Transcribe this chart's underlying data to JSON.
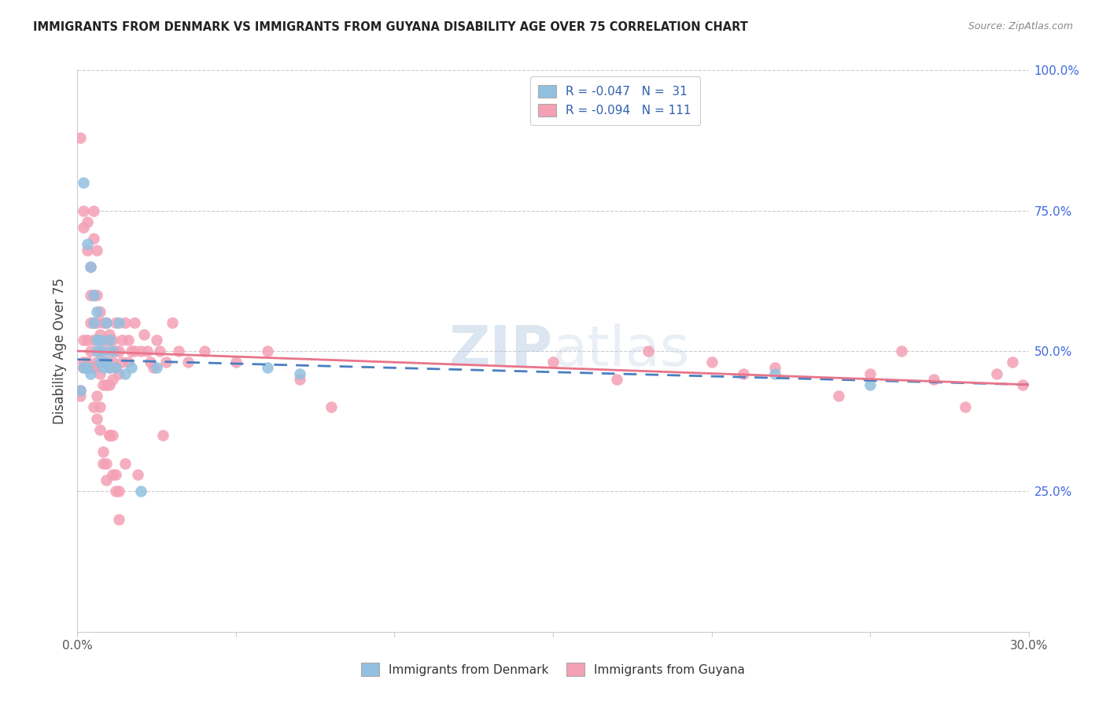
{
  "title": "IMMIGRANTS FROM DENMARK VS IMMIGRANTS FROM GUYANA DISABILITY AGE OVER 75 CORRELATION CHART",
  "source": "Source: ZipAtlas.com",
  "ylabel": "Disability Age Over 75",
  "legend_blue_label": "Immigrants from Denmark",
  "legend_pink_label": "Immigrants from Guyana",
  "legend_blue_r": "R = -0.047",
  "legend_blue_n": "N =  31",
  "legend_pink_r": "R = -0.094",
  "legend_pink_n": "N = 111",
  "watermark": "ZIPatlas",
  "blue_color": "#92c0e0",
  "pink_color": "#f4a0b5",
  "blue_line_color": "#4a7fc0",
  "pink_line_color": "#e8748a",
  "xlim": [
    0.0,
    0.3
  ],
  "ylim": [
    0.0,
    1.0
  ],
  "dk_x": [
    0.001,
    0.002,
    0.002,
    0.003,
    0.003,
    0.004,
    0.004,
    0.005,
    0.005,
    0.006,
    0.006,
    0.006,
    0.007,
    0.007,
    0.008,
    0.008,
    0.009,
    0.009,
    0.01,
    0.01,
    0.011,
    0.012,
    0.013,
    0.015,
    0.017,
    0.02,
    0.025,
    0.06,
    0.07,
    0.22,
    0.25
  ],
  "dk_y": [
    0.43,
    0.47,
    0.8,
    0.47,
    0.69,
    0.46,
    0.65,
    0.55,
    0.6,
    0.5,
    0.52,
    0.57,
    0.48,
    0.52,
    0.47,
    0.5,
    0.48,
    0.55,
    0.47,
    0.52,
    0.5,
    0.47,
    0.55,
    0.46,
    0.47,
    0.25,
    0.47,
    0.47,
    0.46,
    0.46,
    0.44
  ],
  "gy_x": [
    0.001,
    0.001,
    0.002,
    0.002,
    0.002,
    0.002,
    0.003,
    0.003,
    0.003,
    0.003,
    0.004,
    0.004,
    0.004,
    0.004,
    0.005,
    0.005,
    0.005,
    0.005,
    0.005,
    0.005,
    0.006,
    0.006,
    0.006,
    0.006,
    0.007,
    0.007,
    0.007,
    0.007,
    0.008,
    0.008,
    0.008,
    0.008,
    0.009,
    0.009,
    0.009,
    0.009,
    0.01,
    0.01,
    0.01,
    0.01,
    0.011,
    0.011,
    0.011,
    0.012,
    0.012,
    0.012,
    0.013,
    0.013,
    0.014,
    0.014,
    0.015,
    0.015,
    0.016,
    0.016,
    0.017,
    0.018,
    0.018,
    0.019,
    0.02,
    0.021,
    0.022,
    0.023,
    0.024,
    0.025,
    0.026,
    0.027,
    0.028,
    0.03,
    0.032,
    0.035,
    0.001,
    0.002,
    0.003,
    0.004,
    0.005,
    0.006,
    0.007,
    0.008,
    0.009,
    0.01,
    0.011,
    0.012,
    0.013,
    0.04,
    0.05,
    0.06,
    0.07,
    0.08,
    0.15,
    0.17,
    0.18,
    0.2,
    0.21,
    0.22,
    0.24,
    0.25,
    0.26,
    0.27,
    0.28,
    0.29,
    0.295,
    0.298,
    0.005,
    0.006,
    0.007,
    0.008,
    0.009,
    0.01,
    0.011,
    0.012,
    0.013
  ],
  "gy_y": [
    0.88,
    0.43,
    0.52,
    0.75,
    0.72,
    0.48,
    0.73,
    0.68,
    0.52,
    0.47,
    0.65,
    0.6,
    0.55,
    0.47,
    0.75,
    0.7,
    0.6,
    0.55,
    0.52,
    0.47,
    0.68,
    0.6,
    0.55,
    0.48,
    0.57,
    0.53,
    0.5,
    0.46,
    0.55,
    0.52,
    0.48,
    0.44,
    0.55,
    0.52,
    0.48,
    0.44,
    0.53,
    0.5,
    0.47,
    0.44,
    0.52,
    0.48,
    0.45,
    0.55,
    0.5,
    0.47,
    0.5,
    0.46,
    0.52,
    0.48,
    0.55,
    0.3,
    0.52,
    0.48,
    0.5,
    0.55,
    0.5,
    0.28,
    0.5,
    0.53,
    0.5,
    0.48,
    0.47,
    0.52,
    0.5,
    0.35,
    0.48,
    0.55,
    0.5,
    0.48,
    0.42,
    0.47,
    0.48,
    0.5,
    0.47,
    0.42,
    0.4,
    0.3,
    0.27,
    0.35,
    0.35,
    0.28,
    0.25,
    0.5,
    0.48,
    0.5,
    0.45,
    0.4,
    0.48,
    0.45,
    0.5,
    0.48,
    0.46,
    0.47,
    0.42,
    0.46,
    0.5,
    0.45,
    0.4,
    0.46,
    0.48,
    0.44,
    0.4,
    0.38,
    0.36,
    0.32,
    0.3,
    0.35,
    0.28,
    0.25,
    0.2
  ]
}
